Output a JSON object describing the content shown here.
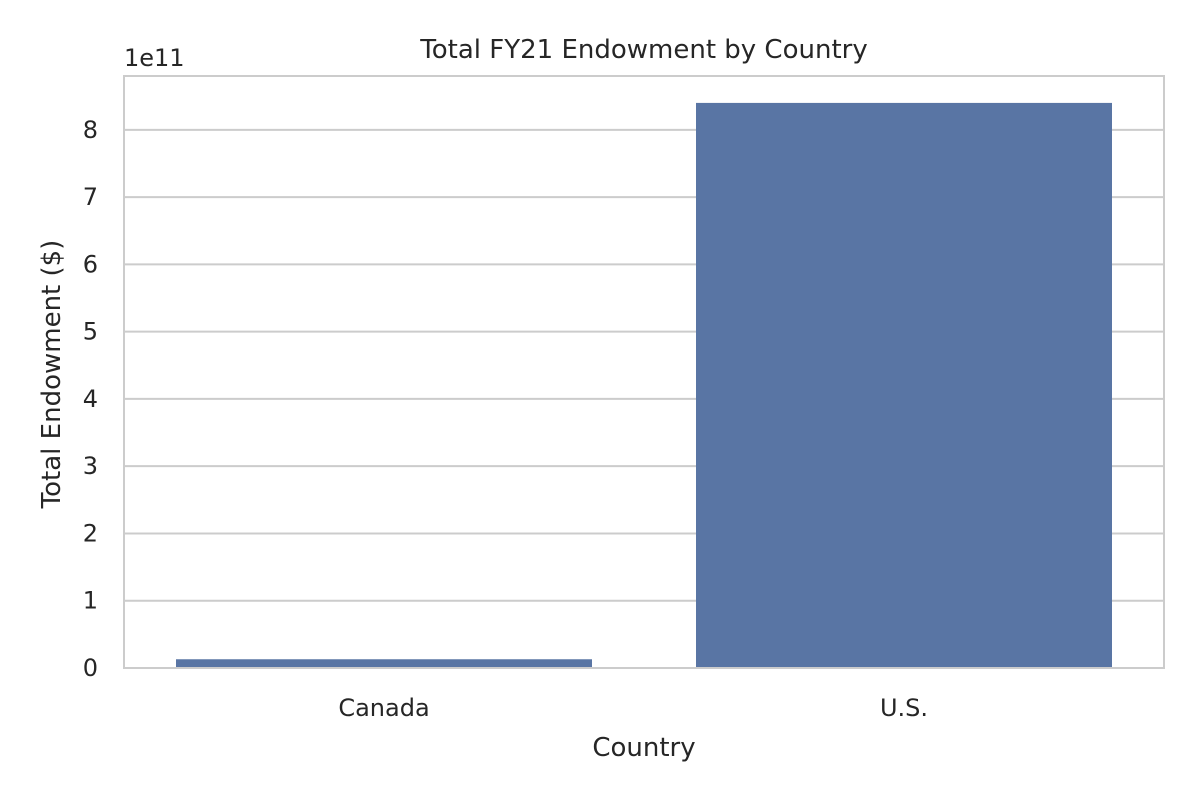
{
  "chart_data": {
    "type": "bar",
    "title": "Total FY21 Endowment by Country",
    "xlabel": "Country",
    "ylabel": "Total Endowment ($)",
    "y_offset_label": "1e11",
    "categories": [
      "Canada",
      "U.S."
    ],
    "values": [
      13000000000,
      840000000000
    ],
    "ylim": [
      0,
      880000000000
    ],
    "y_ticks": [
      0,
      1,
      2,
      3,
      4,
      5,
      6,
      7,
      8
    ],
    "y_tick_multiplier": 100000000000,
    "grid": true,
    "bar_color": "#5975a4",
    "grid_color": "#cccccc",
    "frame_color": "#cccccc"
  }
}
